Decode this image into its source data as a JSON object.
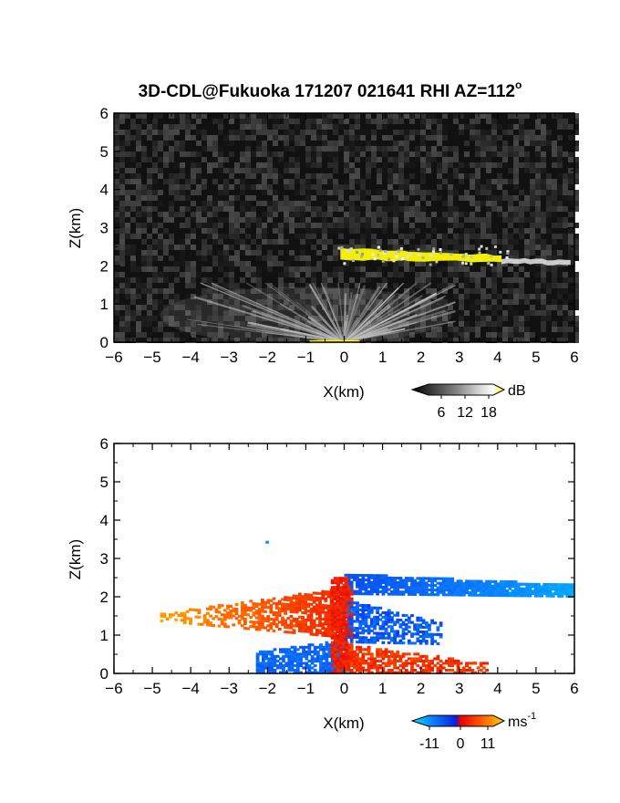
{
  "title": "3D-CDL@Fukuoka 171207 021641 RHI AZ=112",
  "title_superscript": "o",
  "chart_data": [
    {
      "type": "heatmap",
      "panel": "reflectivity",
      "xlabel": "X(km)",
      "ylabel": "Z(km)",
      "xlim": [
        -6,
        6
      ],
      "ylim": [
        0,
        6
      ],
      "xticks": [
        -6,
        -5,
        -4,
        -3,
        -2,
        -1,
        0,
        1,
        2,
        3,
        4,
        5,
        6
      ],
      "yticks": [
        0,
        1,
        2,
        3,
        4,
        5,
        6
      ],
      "grid": false,
      "colorbar": {
        "unit": "dB",
        "ticks": [
          "6",
          "12",
          "18"
        ],
        "range": [
          0,
          21
        ],
        "colors": [
          "#000000",
          "#444444",
          "#888888",
          "#cccccc",
          "#ffffff",
          "#ffff00"
        ]
      },
      "features": [
        {
          "name": "cloud layer",
          "x": [
            -0.1,
            4.2
          ],
          "z": [
            2.1,
            2.45
          ],
          "level": "high (yellow, >18 dB)"
        },
        {
          "name": "cloud layer tail",
          "x": [
            4.2,
            6.0
          ],
          "z": [
            2.0,
            2.25
          ],
          "level": "moderate (white/grey)"
        },
        {
          "name": "boundary layer fan",
          "x": [
            -4.8,
            2.8
          ],
          "z": [
            0.0,
            1.6
          ],
          "level": "moderate (grey streaks)"
        }
      ]
    },
    {
      "type": "heatmap",
      "panel": "doppler velocity",
      "xlabel": "X(km)",
      "ylabel": "Z(km)",
      "xlim": [
        -6,
        6
      ],
      "ylim": [
        0,
        6
      ],
      "xticks": [
        -6,
        -5,
        -4,
        -3,
        -2,
        -1,
        0,
        1,
        2,
        3,
        4,
        5,
        6
      ],
      "yticks": [
        0,
        1,
        2,
        3,
        4,
        5,
        6
      ],
      "grid": false,
      "colorbar": {
        "unit": "ms",
        "unit_superscript": "-1",
        "ticks": [
          "-11",
          "0",
          "11"
        ],
        "range": [
          -15,
          15
        ],
        "colors": [
          "#00e5ff",
          "#0a7fff",
          "#0a1fe0",
          "#e60000",
          "#ff5a00",
          "#ffd000"
        ]
      },
      "features": [
        {
          "name": "cloud layer",
          "x": [
            0.0,
            6.0
          ],
          "z": [
            1.95,
            2.55
          ],
          "velocity_ms": [
            -11,
            -4
          ]
        },
        {
          "name": "receding plume (upper left)",
          "x": [
            -4.8,
            0.2
          ],
          "z": [
            0.9,
            2.1
          ],
          "velocity_ms": [
            3,
            12
          ]
        },
        {
          "name": "approaching lobe (lower left)",
          "x": [
            -2.3,
            0.0
          ],
          "z": [
            0.0,
            0.8
          ],
          "velocity_ms": [
            -9,
            -3
          ]
        },
        {
          "name": "approaching lobe (right)",
          "x": [
            0.0,
            2.5
          ],
          "z": [
            0.8,
            2.0
          ],
          "velocity_ms": [
            -9,
            -3
          ]
        },
        {
          "name": "receding lobe (lower right)",
          "x": [
            0.0,
            3.7
          ],
          "z": [
            0.0,
            0.8
          ],
          "velocity_ms": [
            3,
            8
          ]
        }
      ]
    }
  ]
}
